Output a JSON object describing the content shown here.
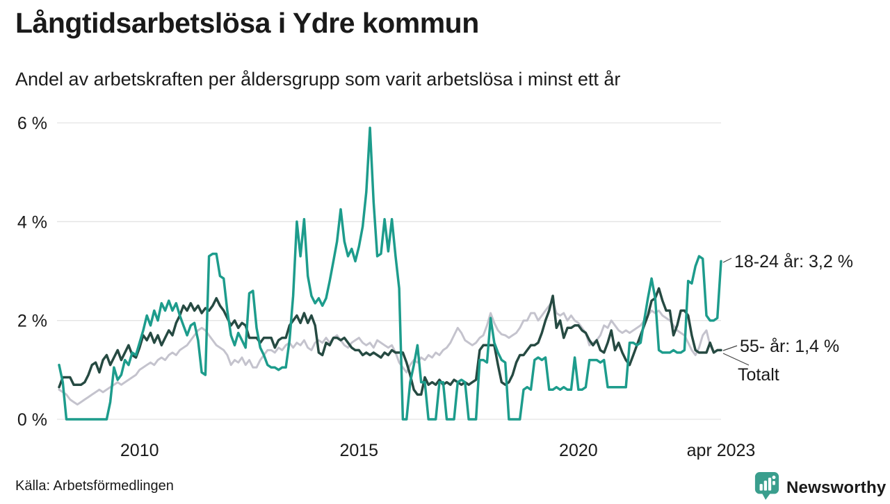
{
  "header": {
    "title": "Långtidsarbetslösa i Ydre kommun",
    "subtitle": "Andel av arbetskraften per åldersgrupp som varit arbetslösa i minst ett år"
  },
  "source": "Källa: Arbetsförmedlingen",
  "logo": {
    "text": "Newsworthy",
    "color": "#2f9c8b",
    "icon": "bar-chart-pin-icon"
  },
  "colors": {
    "accent_teal": "#1d9c8c",
    "dark_green": "#264a42",
    "light_gray": "#c4c3cd",
    "gridline": "#e3e3e3",
    "text": "#1a1a1a"
  },
  "chart_data": {
    "type": "line",
    "title": "Långtidsarbetslösa i Ydre kommun",
    "subtitle": "Andel av arbetskraften per åldersgrupp som varit arbetslösa i minst ett år",
    "x_unit": "month",
    "x_range": [
      "2008-03",
      "2023-04"
    ],
    "ylim": [
      0,
      6
    ],
    "grid": "horizontal",
    "legend_position": "end-of-line-labels",
    "yticks": [
      {
        "value": 0,
        "label": "0 %"
      },
      {
        "value": 2,
        "label": "2 %"
      },
      {
        "value": 4,
        "label": "4 %"
      },
      {
        "value": 6,
        "label": "6 %"
      }
    ],
    "xticks": [
      {
        "month_index": 22,
        "label": "2010"
      },
      {
        "month_index": 82,
        "label": "2015"
      },
      {
        "month_index": 142,
        "label": "2020"
      },
      {
        "month_index": 181,
        "label": "apr 2023"
      }
    ],
    "series": [
      {
        "name": "18-24 år",
        "end_label": "18-24 år: 3,2 %",
        "end_value": 3.2,
        "color": "#1d9c8c",
        "width": 3.5,
        "values": [
          1.1,
          0.75,
          0,
          0,
          0,
          0,
          0,
          0,
          0,
          0,
          0,
          0,
          0,
          0,
          0.35,
          1.05,
          0.8,
          0.9,
          1.2,
          1.1,
          1.35,
          1.3,
          1.55,
          1.8,
          2.1,
          1.9,
          2.2,
          2.0,
          2.35,
          2.2,
          2.4,
          2.2,
          2.35,
          2.1,
          1.9,
          1.7,
          1.9,
          1.95,
          1.6,
          0.95,
          0.9,
          3.3,
          3.35,
          3.35,
          2.9,
          2.85,
          2.2,
          1.7,
          1.5,
          1.75,
          1.6,
          1.45,
          2.55,
          2.6,
          1.85,
          1.45,
          1.3,
          1.1,
          1.05,
          1.05,
          1.0,
          1.05,
          1.05,
          1.6,
          2.5,
          4.0,
          3.3,
          4.05,
          2.9,
          2.5,
          2.35,
          2.45,
          2.3,
          2.45,
          2.8,
          3.2,
          3.6,
          4.25,
          3.6,
          3.3,
          3.45,
          3.2,
          3.5,
          3.9,
          4.6,
          5.9,
          4.4,
          3.3,
          3.35,
          4.05,
          3.4,
          4.05,
          3.3,
          2.65,
          0,
          0,
          0.75,
          1.1,
          1.5,
          0.75,
          0.75,
          0,
          0,
          0,
          0.75,
          0.75,
          0,
          0,
          0,
          0.75,
          0.8,
          0.75,
          0,
          0,
          0,
          1.2,
          1.2,
          1.15,
          2.05,
          1.55,
          1.35,
          1.2,
          1.15,
          0,
          0,
          0,
          0,
          0.6,
          0.65,
          0.6,
          1.2,
          1.25,
          1.2,
          1.25,
          0.6,
          0.6,
          0.65,
          0.6,
          0.65,
          0.6,
          0.6,
          1.25,
          0.6,
          0.6,
          0.65,
          1.2,
          1.2,
          1.2,
          1.15,
          1.2,
          0.65,
          0.65,
          0.65,
          0.65,
          0.65,
          0.65,
          1.55,
          1.55,
          1.5,
          1.55,
          2.0,
          2.45,
          2.85,
          2.45,
          1.4,
          1.35,
          1.35,
          1.35,
          1.4,
          1.35,
          1.35,
          1.4,
          2.8,
          2.75,
          3.1,
          3.3,
          3.25,
          2.1,
          2.0,
          2.0,
          2.05,
          3.2
        ]
      },
      {
        "name": "55- år",
        "end_label": "55- år: 1,4 %",
        "end_value": 1.4,
        "color": "#264a42",
        "width": 3.5,
        "values": [
          0.65,
          0.85,
          0.85,
          0.85,
          0.7,
          0.7,
          0.7,
          0.75,
          0.9,
          1.1,
          1.15,
          0.95,
          1.2,
          1.3,
          1.1,
          1.25,
          1.4,
          1.2,
          1.35,
          1.5,
          1.3,
          1.25,
          1.45,
          1.7,
          1.6,
          1.75,
          1.55,
          1.7,
          1.5,
          1.65,
          1.8,
          1.7,
          1.95,
          2.1,
          2.3,
          2.2,
          2.35,
          2.2,
          2.3,
          2.15,
          2.25,
          2.2,
          2.3,
          2.45,
          2.3,
          2.2,
          2.05,
          1.9,
          2.0,
          1.85,
          1.95,
          1.9,
          1.65,
          1.65,
          1.65,
          1.55,
          1.65,
          1.65,
          1.65,
          1.45,
          1.6,
          1.65,
          1.65,
          1.9,
          2.0,
          2.1,
          1.95,
          2.15,
          1.95,
          2.1,
          1.9,
          1.35,
          1.3,
          1.55,
          1.5,
          1.65,
          1.65,
          1.6,
          1.65,
          1.55,
          1.45,
          1.4,
          1.4,
          1.3,
          1.35,
          1.3,
          1.35,
          1.3,
          1.25,
          1.35,
          1.3,
          1.4,
          1.35,
          1.35,
          1.35,
          1.15,
          0.9,
          0.6,
          0.5,
          0.5,
          0.85,
          0.7,
          0.75,
          0.7,
          0.8,
          0.7,
          0.75,
          0.7,
          0.8,
          0.75,
          0.7,
          0.75,
          0.7,
          0.75,
          0.8,
          1.4,
          1.5,
          1.5,
          1.5,
          1.5,
          1.1,
          0.75,
          0.7,
          0.75,
          0.9,
          1.15,
          1.3,
          1.3,
          1.4,
          1.5,
          1.5,
          1.55,
          1.75,
          2.0,
          2.2,
          2.5,
          1.85,
          2.0,
          1.65,
          1.85,
          1.85,
          1.9,
          1.9,
          1.8,
          1.75,
          1.6,
          1.5,
          1.6,
          1.4,
          1.35,
          1.55,
          1.8,
          1.4,
          1.55,
          1.35,
          1.2,
          1.1,
          1.3,
          1.5,
          1.7,
          1.9,
          2.1,
          2.4,
          2.45,
          2.65,
          2.4,
          2.2,
          2.2,
          1.7,
          1.9,
          2.2,
          2.2,
          2.1,
          1.7,
          1.4,
          1.35,
          1.35,
          1.35,
          1.55,
          1.35,
          1.4,
          1.4
        ]
      },
      {
        "name": "Totalt",
        "end_label": "Totalt",
        "end_value": 1.4,
        "color": "#c4c3cd",
        "width": 3,
        "values": [
          0.6,
          0.55,
          0.5,
          0.4,
          0.35,
          0.3,
          0.35,
          0.4,
          0.45,
          0.5,
          0.55,
          0.6,
          0.55,
          0.6,
          0.65,
          0.7,
          0.75,
          0.7,
          0.75,
          0.8,
          0.85,
          0.9,
          1.0,
          1.05,
          1.1,
          1.15,
          1.1,
          1.2,
          1.25,
          1.2,
          1.3,
          1.35,
          1.3,
          1.4,
          1.45,
          1.5,
          1.6,
          1.7,
          1.8,
          1.85,
          1.8,
          1.7,
          1.6,
          1.5,
          1.45,
          1.4,
          1.3,
          1.1,
          1.2,
          1.15,
          1.25,
          1.1,
          1.2,
          1.05,
          1.05,
          1.2,
          1.3,
          1.4,
          1.4,
          1.35,
          1.45,
          1.4,
          1.5,
          1.55,
          1.45,
          1.55,
          1.5,
          1.6,
          1.45,
          1.4,
          1.55,
          1.6,
          1.55,
          1.65,
          1.55,
          1.65,
          1.7,
          1.6,
          1.5,
          1.45,
          1.55,
          1.6,
          1.65,
          1.55,
          1.5,
          1.55,
          1.45,
          1.6,
          1.55,
          1.5,
          1.45,
          1.5,
          1.35,
          1.15,
          1.05,
          0.95,
          1.1,
          1.2,
          1.15,
          1.25,
          1.2,
          1.3,
          1.25,
          1.35,
          1.3,
          1.4,
          1.45,
          1.55,
          1.7,
          1.85,
          1.75,
          1.6,
          1.55,
          1.5,
          1.55,
          1.65,
          1.7,
          1.9,
          2.15,
          1.95,
          1.8,
          1.72,
          1.7,
          1.65,
          1.7,
          1.75,
          1.85,
          2.0,
          2.0,
          2.15,
          2.15,
          2.0,
          2.1,
          2.2,
          2.3,
          2.4,
          2.15,
          2.1,
          2.15,
          2.0,
          2.1,
          2.0,
          1.95,
          1.85,
          1.75,
          1.5,
          1.55,
          1.6,
          1.7,
          1.9,
          1.85,
          2.0,
          1.9,
          1.8,
          1.75,
          1.8,
          1.75,
          1.8,
          1.85,
          1.9,
          2.0,
          2.1,
          2.2,
          2.15,
          2.2,
          2.1,
          2.05,
          2.0,
          1.9,
          1.8,
          1.75,
          1.7,
          1.55,
          1.4,
          1.3,
          1.45,
          1.7,
          1.8,
          1.5,
          1.35,
          1.4,
          1.4
        ]
      }
    ]
  }
}
